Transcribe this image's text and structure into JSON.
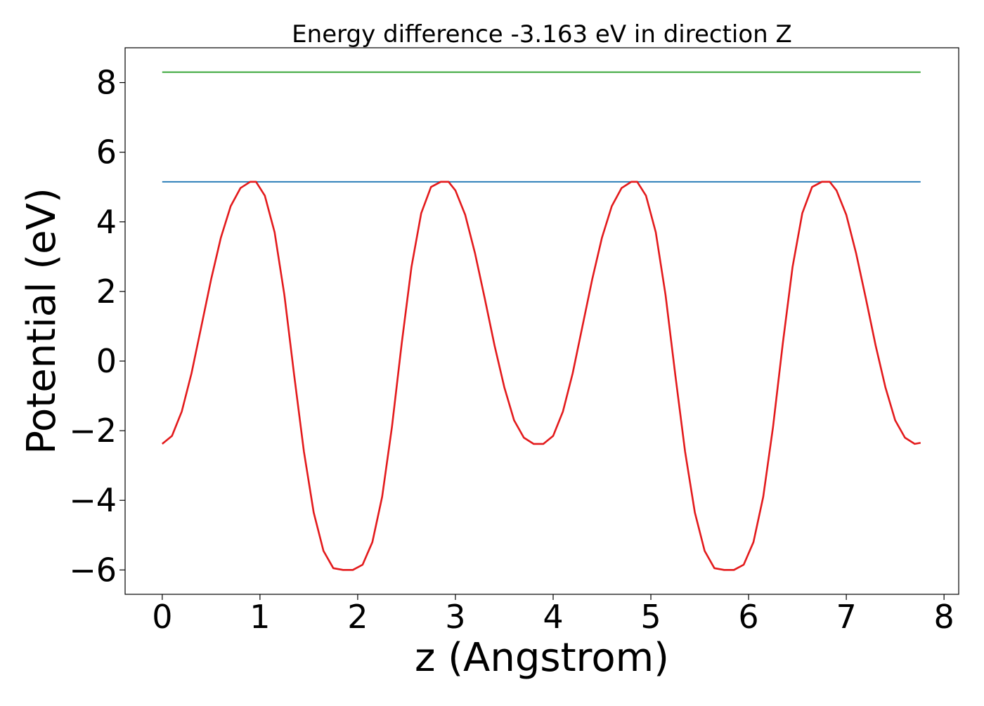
{
  "chart_data": {
    "type": "line",
    "title": "Energy difference -3.163 eV in direction Z",
    "xlabel": "z (Angstrom)",
    "ylabel": "Potential (eV)",
    "xlim": [
      -0.38,
      8.15
    ],
    "ylim": [
      -6.7,
      9.0
    ],
    "xticks": [
      "0",
      "1",
      "2",
      "3",
      "4",
      "5",
      "6",
      "7",
      "8"
    ],
    "yticks": [
      "−6",
      "−4",
      "−2",
      "0",
      "2",
      "4",
      "6",
      "8"
    ],
    "xtick_values": [
      0,
      1,
      2,
      3,
      4,
      5,
      6,
      7,
      8
    ],
    "ytick_values": [
      -6,
      -4,
      -2,
      0,
      2,
      4,
      6,
      8
    ],
    "grid": false,
    "series": [
      {
        "role": "reference-high",
        "color": "#2ca02c",
        "x": [
          0,
          7.76
        ],
        "y": [
          8.3,
          8.3
        ]
      },
      {
        "role": "reference-max",
        "color": "#1f77b4",
        "x": [
          0,
          7.76
        ],
        "y": [
          5.15,
          5.15
        ]
      },
      {
        "role": "potential",
        "color": "#e31a1c",
        "x": [
          0.0,
          0.1,
          0.2,
          0.3,
          0.4,
          0.5,
          0.6,
          0.7,
          0.8,
          0.9,
          0.96,
          1.05,
          1.15,
          1.25,
          1.35,
          1.45,
          1.55,
          1.65,
          1.75,
          1.85,
          1.95,
          2.05,
          2.15,
          2.25,
          2.35,
          2.45,
          2.55,
          2.65,
          2.75,
          2.85,
          2.93,
          3.0,
          3.1,
          3.2,
          3.3,
          3.4,
          3.5,
          3.6,
          3.7,
          3.8,
          3.9,
          4.0,
          4.1,
          4.2,
          4.3,
          4.4,
          4.5,
          4.6,
          4.7,
          4.8,
          4.86,
          4.95,
          5.05,
          5.15,
          5.25,
          5.35,
          5.45,
          5.55,
          5.65,
          5.75,
          5.85,
          5.95,
          6.05,
          6.15,
          6.25,
          6.35,
          6.45,
          6.55,
          6.65,
          6.75,
          6.83,
          6.9,
          7.0,
          7.1,
          7.2,
          7.3,
          7.4,
          7.5,
          7.6,
          7.7,
          7.76
        ],
        "y": [
          -2.38,
          -2.15,
          -1.45,
          -0.35,
          1.0,
          2.35,
          3.55,
          4.45,
          4.97,
          5.15,
          5.15,
          4.75,
          3.7,
          1.9,
          -0.4,
          -2.6,
          -4.35,
          -5.45,
          -5.95,
          -6.0,
          -6.0,
          -5.85,
          -5.2,
          -3.9,
          -1.9,
          0.5,
          2.7,
          4.25,
          5.0,
          5.15,
          5.15,
          4.9,
          4.2,
          3.1,
          1.8,
          0.45,
          -0.75,
          -1.7,
          -2.2,
          -2.38,
          -2.38,
          -2.15,
          -1.45,
          -0.35,
          1.0,
          2.35,
          3.55,
          4.45,
          4.97,
          5.15,
          5.15,
          4.75,
          3.7,
          1.9,
          -0.4,
          -2.6,
          -4.35,
          -5.45,
          -5.95,
          -6.0,
          -6.0,
          -5.85,
          -5.2,
          -3.9,
          -1.9,
          0.5,
          2.7,
          4.25,
          5.0,
          5.15,
          5.15,
          4.9,
          4.2,
          3.1,
          1.8,
          0.45,
          -0.75,
          -1.7,
          -2.2,
          -2.38,
          -2.35
        ]
      }
    ]
  }
}
